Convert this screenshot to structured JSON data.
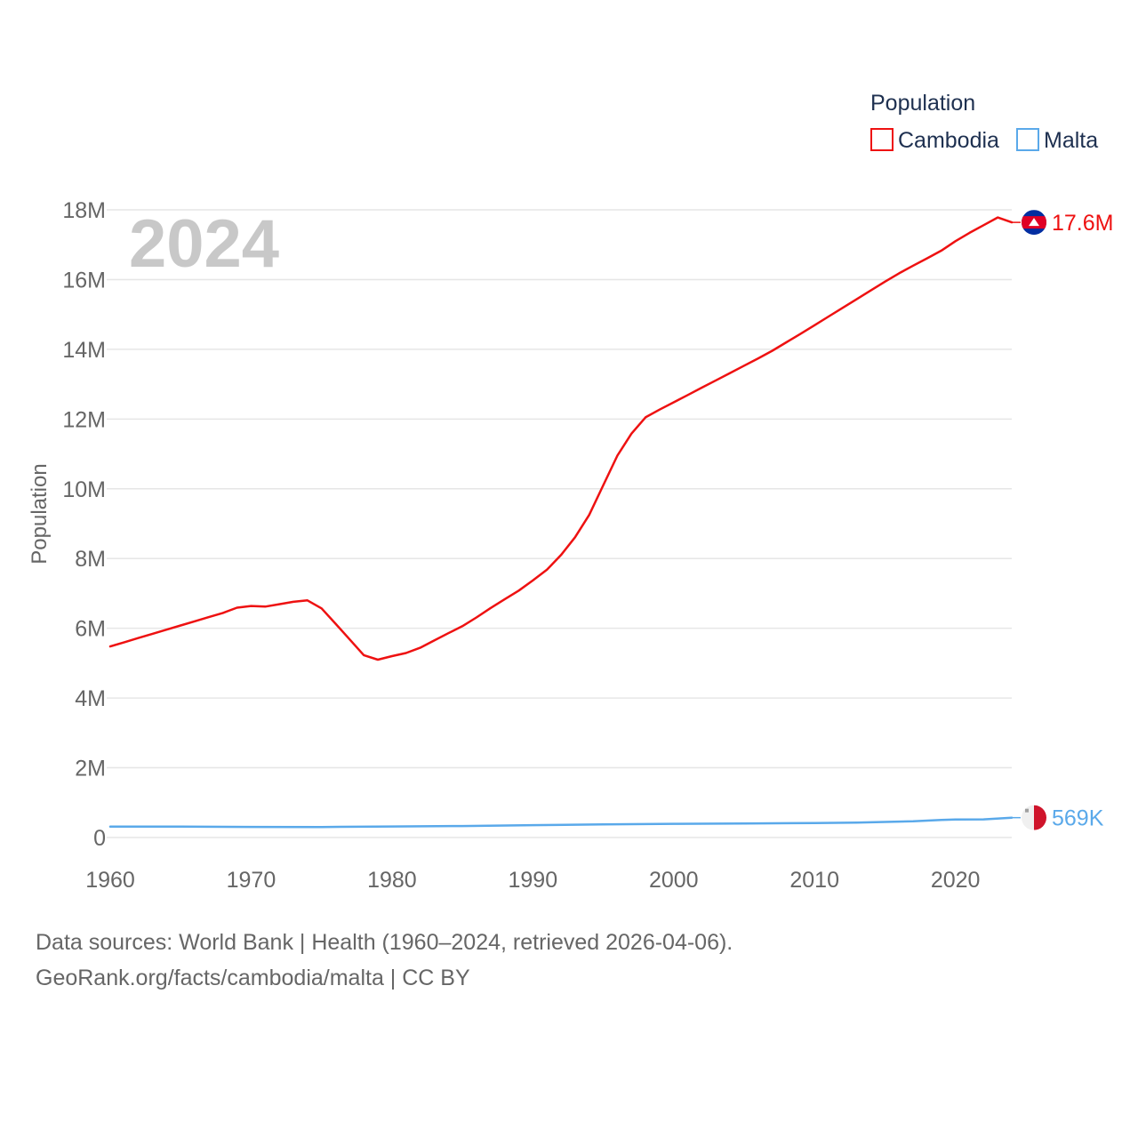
{
  "chart_data": {
    "type": "line",
    "title": "Population",
    "legend_title": "Population",
    "ylabel": "Population",
    "xlabel": "",
    "year_watermark": "2024",
    "xlim": [
      1960,
      2024
    ],
    "ylim": [
      0,
      18000000
    ],
    "x_ticks": [
      1960,
      1970,
      1980,
      1990,
      2000,
      2010,
      2020
    ],
    "y_ticks": [
      {
        "value": 0,
        "label": "0"
      },
      {
        "value": 2000000,
        "label": "2M"
      },
      {
        "value": 4000000,
        "label": "4M"
      },
      {
        "value": 6000000,
        "label": "6M"
      },
      {
        "value": 8000000,
        "label": "8M"
      },
      {
        "value": 10000000,
        "label": "10M"
      },
      {
        "value": 12000000,
        "label": "12M"
      },
      {
        "value": 14000000,
        "label": "14M"
      },
      {
        "value": 16000000,
        "label": "16M"
      },
      {
        "value": 18000000,
        "label": "18M"
      }
    ],
    "grid": true,
    "legend_position": "top-right",
    "series": [
      {
        "name": "Cambodia",
        "color": "#ee1111",
        "end_label": "17.6M",
        "flag": "cambodia-flag",
        "x": [
          1960,
          1961,
          1962,
          1963,
          1964,
          1965,
          1966,
          1967,
          1968,
          1969,
          1970,
          1971,
          1972,
          1973,
          1974,
          1975,
          1976,
          1977,
          1978,
          1979,
          1980,
          1981,
          1982,
          1983,
          1984,
          1985,
          1986,
          1987,
          1988,
          1989,
          1990,
          1991,
          1992,
          1993,
          1994,
          1995,
          1996,
          1997,
          1998,
          1999,
          2000,
          2001,
          2002,
          2003,
          2004,
          2005,
          2006,
          2007,
          2008,
          2009,
          2010,
          2011,
          2012,
          2013,
          2014,
          2015,
          2016,
          2017,
          2018,
          2019,
          2020,
          2021,
          2022,
          2023,
          2024
        ],
        "values": [
          5480000,
          5600000,
          5720000,
          5840000,
          5960000,
          6080000,
          6200000,
          6320000,
          6440000,
          6590000,
          6640000,
          6620000,
          6690000,
          6760000,
          6800000,
          6570000,
          6130000,
          5680000,
          5230000,
          5100000,
          5200000,
          5290000,
          5440000,
          5650000,
          5860000,
          6060000,
          6310000,
          6580000,
          6830000,
          7080000,
          7370000,
          7680000,
          8100000,
          8610000,
          9250000,
          10100000,
          10950000,
          11580000,
          12050000,
          12270000,
          12480000,
          12690000,
          12900000,
          13110000,
          13320000,
          13530000,
          13740000,
          13960000,
          14200000,
          14440000,
          14690000,
          14940000,
          15190000,
          15440000,
          15690000,
          15940000,
          16180000,
          16400000,
          16610000,
          16830000,
          17100000,
          17340000,
          17560000,
          17780000,
          17640000
        ]
      },
      {
        "name": "Malta",
        "color": "#5aa9ea",
        "end_label": "569K",
        "flag": "malta-flag",
        "x": [
          1960,
          1965,
          1970,
          1975,
          1980,
          1985,
          1990,
          1995,
          2000,
          2005,
          2010,
          2013,
          2015,
          2017,
          2019,
          2020,
          2022,
          2024
        ],
        "values": [
          312000,
          310000,
          303000,
          300000,
          315000,
          330000,
          355000,
          375000,
          393000,
          403000,
          414000,
          425000,
          445000,
          465000,
          502000,
          515000,
          520000,
          569000
        ]
      }
    ]
  },
  "footer": {
    "line1": "Data sources: World Bank | Health (1960–2024, retrieved 2026-04-06).",
    "line2": "GeoRank.org/facts/cambodia/malta | CC BY"
  }
}
